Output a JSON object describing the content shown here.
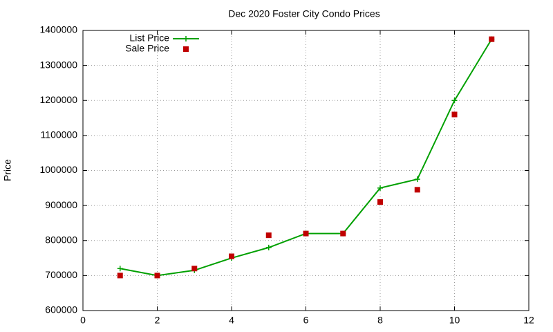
{
  "chart_data": {
    "type": "line",
    "title": "Dec 2020 Foster City Condo Prices",
    "ylabel": "Price",
    "x": [
      1,
      2,
      3,
      4,
      5,
      6,
      7,
      8,
      9,
      10,
      11
    ],
    "series": [
      {
        "name": "List Price",
        "color": "#00a000",
        "style": "linespoints",
        "values": [
          720000,
          700000,
          715000,
          750000,
          780000,
          820000,
          820000,
          950000,
          975000,
          1200000,
          1375000
        ]
      },
      {
        "name": "Sale Price",
        "color": "#c00000",
        "style": "points",
        "values": [
          700000,
          700000,
          720000,
          755000,
          815000,
          820000,
          820000,
          910000,
          945000,
          1160000,
          1375000
        ]
      }
    ],
    "xlim": [
      0,
      12
    ],
    "xticks": [
      0,
      2,
      4,
      6,
      8,
      10,
      12
    ],
    "ylim": [
      600000,
      1400000
    ],
    "yticks": [
      600000,
      700000,
      800000,
      900000,
      1000000,
      1100000,
      1200000,
      1300000,
      1400000
    ],
    "grid": true,
    "legend": "top-left"
  }
}
